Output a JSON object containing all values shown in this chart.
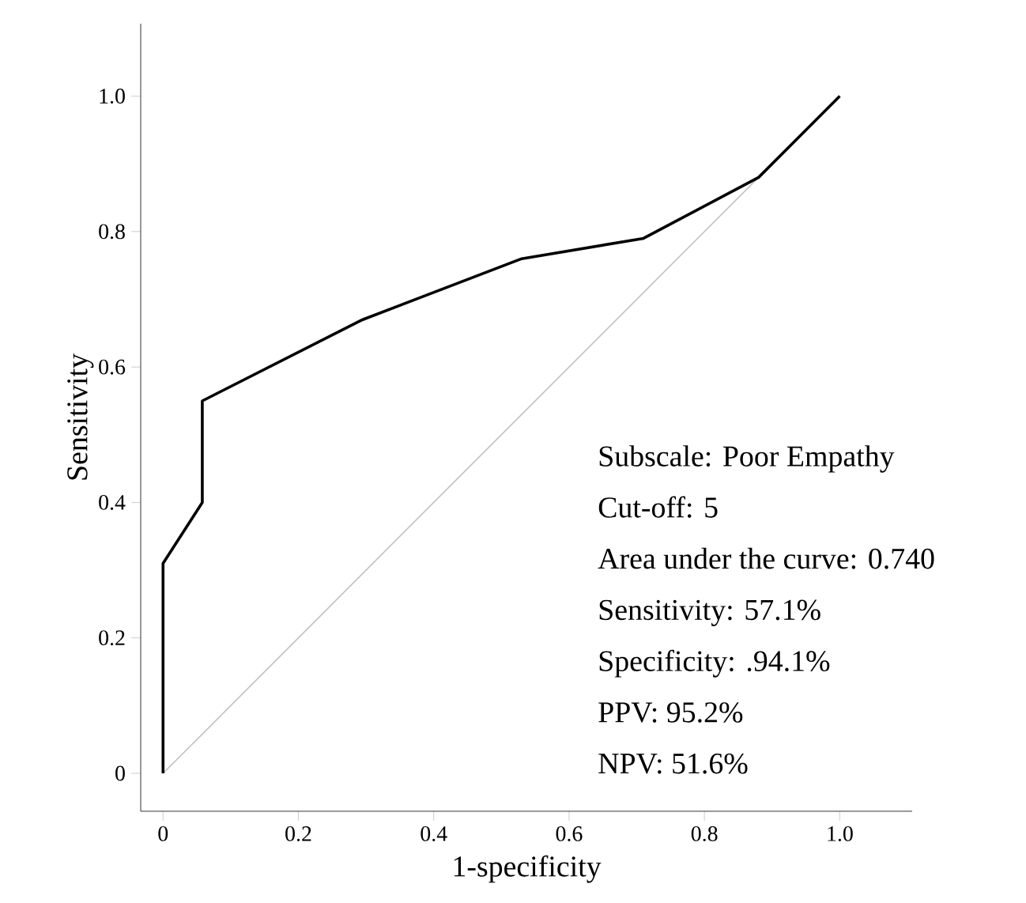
{
  "chart_data": {
    "type": "line",
    "xlabel": "1-specificity",
    "ylabel": "Sensitivity",
    "xlim": [
      -0.033,
      1.107
    ],
    "ylim": [
      -0.056,
      1.107
    ],
    "xticks": [
      {
        "value": 0,
        "label": "0"
      },
      0.2,
      0.4,
      0.6,
      0.8,
      {
        "value": 1,
        "label": "1.0"
      }
    ],
    "yticks": [
      {
        "value": 0,
        "label": "0"
      },
      0.2,
      0.4,
      0.6,
      0.8,
      {
        "value": 1,
        "label": "1.0"
      }
    ],
    "grid": false,
    "legend": false,
    "marker": "none",
    "line_style": "solid",
    "series": [
      {
        "color": "#c0c0c0",
        "x": [
          0,
          1
        ],
        "values": [
          0,
          1
        ]
      },
      {
        "color": "#000000",
        "x": [
          0,
          0,
          0.058,
          0.058,
          0.295,
          0.53,
          0.71,
          0.88,
          1
        ],
        "values": [
          0,
          0.31,
          0.4,
          0.55,
          0.67,
          0.76,
          0.79,
          0.88,
          1
        ]
      }
    ],
    "annotations": [
      "Subscale: Poor Empathy",
      "Cut-off: 5",
      "Area under the curve: 0.740",
      "Sensitivity: 57.1%",
      "Specificity: .94.1%",
      "PPV: 95.2%",
      "NPV: 51.6%"
    ]
  }
}
